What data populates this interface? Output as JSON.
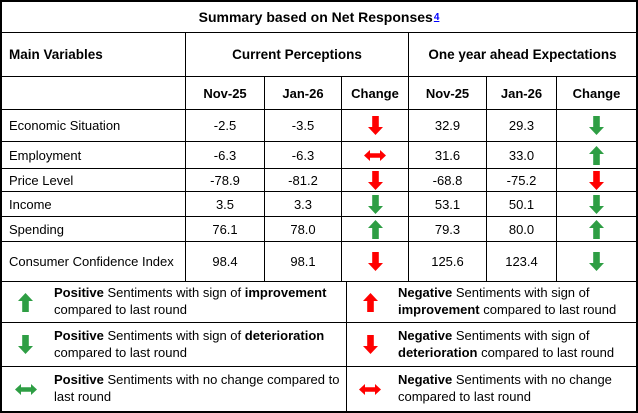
{
  "title": {
    "text": "Summary based on Net Responses",
    "footnote": "4"
  },
  "colors": {
    "green": "#2E9E44",
    "red": "#FF0000",
    "footnote_blue": "#0000FF",
    "border": "#000000"
  },
  "header": {
    "main_variables": "Main Variables",
    "groups": [
      {
        "label": "Current Perceptions"
      },
      {
        "label": "One year ahead Expectations"
      }
    ],
    "subcolumns": [
      "Nov-25",
      "Jan-26",
      "Change"
    ]
  },
  "rows": [
    {
      "label": "Economic Situation",
      "current": {
        "nov": "-2.5",
        "jan": "-3.5",
        "change": "down-red"
      },
      "expectations": {
        "nov": "32.9",
        "jan": "29.3",
        "change": "down-green"
      }
    },
    {
      "label": "Employment",
      "current": {
        "nov": "-6.3",
        "jan": "-6.3",
        "change": "left-right-red"
      },
      "expectations": {
        "nov": "31.6",
        "jan": "33.0",
        "change": "up-green"
      }
    },
    {
      "label": "Price Level",
      "current": {
        "nov": "-78.9",
        "jan": "-81.2",
        "change": "down-red"
      },
      "expectations": {
        "nov": "-68.8",
        "jan": "-75.2",
        "change": "down-red"
      }
    },
    {
      "label": "Income",
      "current": {
        "nov": "3.5",
        "jan": "3.3",
        "change": "down-green"
      },
      "expectations": {
        "nov": "53.1",
        "jan": "50.1",
        "change": "down-green"
      }
    },
    {
      "label": "Spending",
      "current": {
        "nov": "76.1",
        "jan": "78.0",
        "change": "up-green"
      },
      "expectations": {
        "nov": "79.3",
        "jan": "80.0",
        "change": "up-green"
      }
    },
    {
      "label": "Consumer Confidence Index",
      "current": {
        "nov": "98.4",
        "jan": "98.1",
        "change": "down-red"
      },
      "expectations": {
        "nov": "125.6",
        "jan": "123.4",
        "change": "down-green"
      }
    }
  ],
  "legend": {
    "left": [
      {
        "arrow": "up-green",
        "parts": [
          {
            "text": "Positive",
            "bold": true
          },
          {
            "text": " Sentiments with sign of ",
            "bold": false
          },
          {
            "text": "improvement",
            "bold": true
          },
          {
            "text": " compared to last round",
            "bold": false
          }
        ]
      },
      {
        "arrow": "down-green",
        "parts": [
          {
            "text": "Positive",
            "bold": true
          },
          {
            "text": " Sentiments with sign of ",
            "bold": false
          },
          {
            "text": "deterioration",
            "bold": true
          },
          {
            "text": " compared to last round",
            "bold": false
          }
        ]
      },
      {
        "arrow": "left-right-green",
        "parts": [
          {
            "text": "Positive",
            "bold": true
          },
          {
            "text": " Sentiments with no change compared to last round",
            "bold": false
          }
        ]
      }
    ],
    "right": [
      {
        "arrow": "up-red",
        "parts": [
          {
            "text": "Negative",
            "bold": true
          },
          {
            "text": " Sentiments with sign of ",
            "bold": false
          },
          {
            "text": "improvement",
            "bold": true
          },
          {
            "text": " compared to last round",
            "bold": false
          }
        ]
      },
      {
        "arrow": "down-red",
        "parts": [
          {
            "text": "Negative",
            "bold": true
          },
          {
            "text": " Sentiments with sign of ",
            "bold": false
          },
          {
            "text": "deterioration",
            "bold": true
          },
          {
            "text": " compared to last round",
            "bold": false
          }
        ]
      },
      {
        "arrow": "left-right-red",
        "parts": [
          {
            "text": "Negative",
            "bold": true
          },
          {
            "text": " Sentiments with no change compared to last round",
            "bold": false
          }
        ]
      }
    ]
  }
}
